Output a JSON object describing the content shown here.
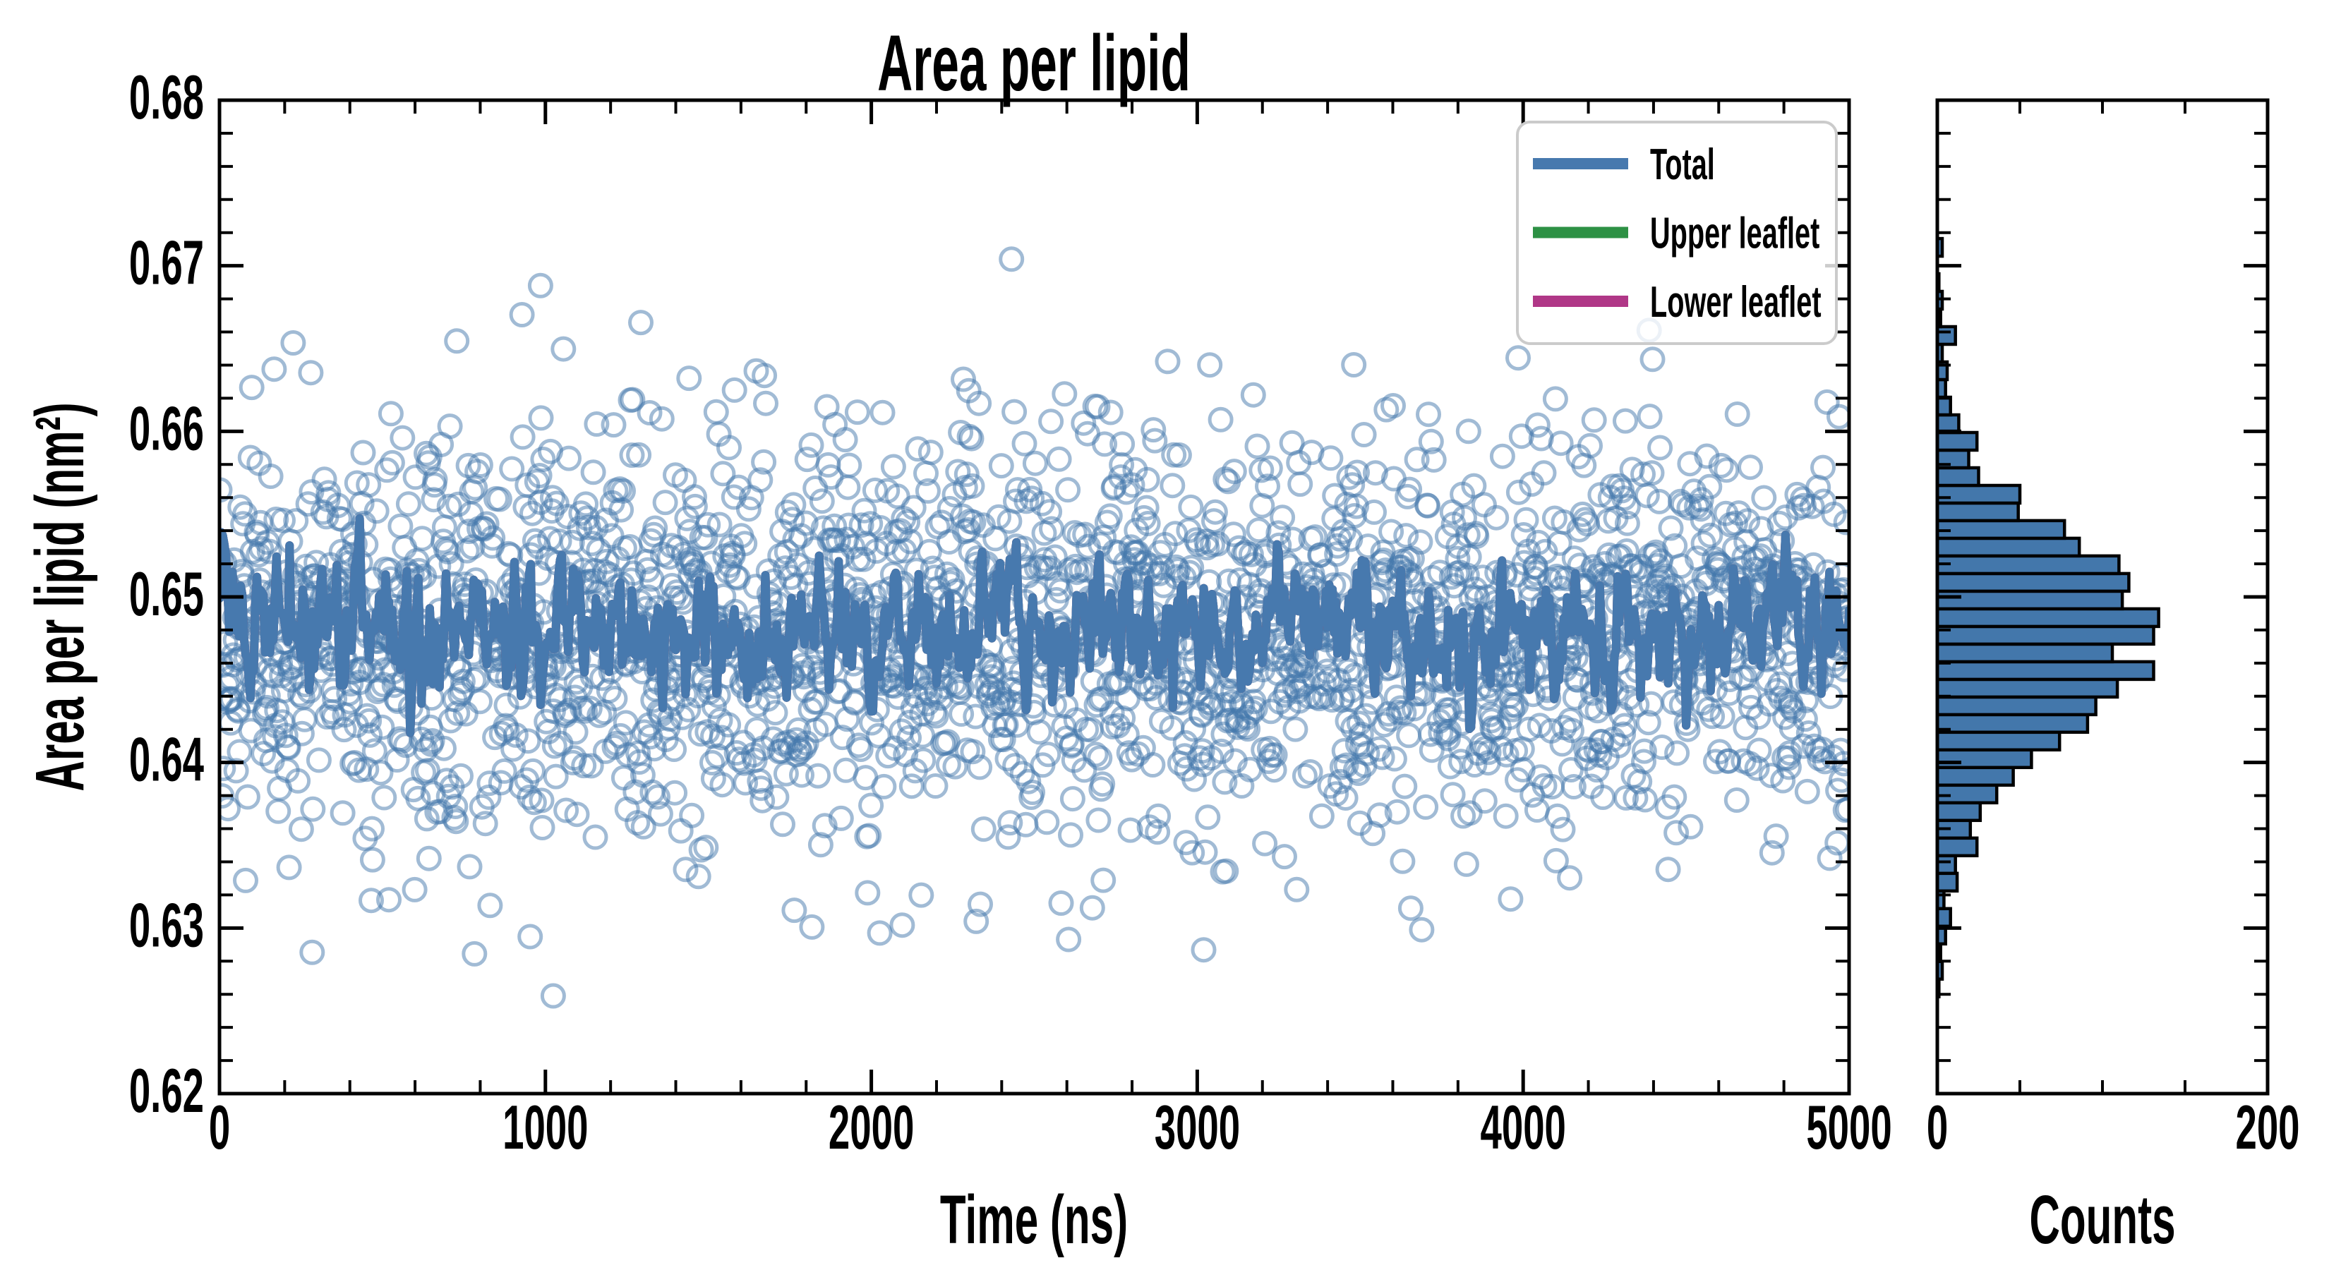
{
  "figure": {
    "title": "Area per lipid",
    "background": "#ffffff",
    "main_plot": {
      "xlabel": "Time (ns)",
      "ylabel": "Area per lipid (nm²)",
      "xlim": [
        0,
        5000
      ],
      "ylim": [
        0.62,
        0.68
      ],
      "x_tick_labels": [
        "0",
        "1000",
        "2000",
        "3000",
        "4000",
        "5000"
      ],
      "x_tick_values": [
        0,
        1000,
        2000,
        3000,
        4000,
        5000
      ],
      "x_minor_step": 200,
      "y_tick_labels": [
        "0.62",
        "0.63",
        "0.64",
        "0.65",
        "0.66",
        "0.67",
        "0.68"
      ],
      "y_tick_values": [
        0.62,
        0.63,
        0.64,
        0.65,
        0.66,
        0.67,
        0.68
      ],
      "y_minor_step": 0.002
    },
    "hist_plot": {
      "xlabel": "Counts",
      "xlim": [
        0,
        200
      ],
      "x_tick_labels": [
        "0",
        "200"
      ],
      "x_tick_values": [
        0,
        200
      ],
      "x_minor_ticks": [
        50,
        100,
        150
      ]
    },
    "legend": {
      "entries": [
        {
          "label": "Total",
          "color": "#4779AE"
        },
        {
          "label": "Upper leaflet",
          "color": "#2D9144"
        },
        {
          "label": "Lower leaflet",
          "color": "#B03787"
        }
      ],
      "border_color": "#CBCBCB",
      "background": "rgba(255,255,255,0.8)"
    },
    "colors": {
      "total_line": "#4779AE",
      "upper_leaflet_line": "#2D9144",
      "lower_leaflet_line": "#B03787",
      "histogram_fill": "#4377AB",
      "histogram_edge": "#000000",
      "scatter_edge": "rgba(67,119,171,0.5)",
      "axes": "#000000"
    }
  },
  "chart_data": [
    {
      "panel": "main",
      "type": "scatter",
      "title": "Area per lipid",
      "xlabel": "Time (ns)",
      "ylabel": "Area per lipid (nm²)",
      "xlim": [
        0,
        5000
      ],
      "ylim": [
        0.62,
        0.68
      ],
      "grid": false,
      "legend_position": "upper right",
      "series": [
        {
          "name": "Total",
          "type": "line",
          "color": "#4779AE",
          "summary": {
            "mean": 0.648,
            "sd": 0.0018,
            "points": 1001,
            "x_step_ns": 5
          }
        },
        {
          "name": "Upper leaflet",
          "type": "line",
          "color": "#2D9144",
          "note": "coincides with Total average and is hidden beneath it"
        },
        {
          "name": "Lower leaflet",
          "type": "line",
          "color": "#B03787",
          "note": "coincides with Total average and is hidden beneath it"
        },
        {
          "name": "per-frame samples",
          "type": "scatter",
          "marker": "open-circle",
          "color": "rgba(67,119,171,0.5)",
          "summary": {
            "points": 2400,
            "mean": 0.6478,
            "sd": 0.0062,
            "x_range_ns": [
              0,
              5000
            ]
          }
        }
      ],
      "notable_outliers": [
        [
          2430,
          0.6704
        ],
        [
          985,
          0.6688
        ],
        [
          1024,
          0.6259
        ],
        [
          3655,
          0.6312
        ]
      ],
      "gen": {
        "scatter_seed": 20,
        "line_seed": 11,
        "line_phi": 0.5,
        "line_innovation_sd": 0.0016
      }
    },
    {
      "panel": "right",
      "type": "bar",
      "orientation": "horizontal",
      "xlabel": "Counts",
      "xlim": [
        0,
        200
      ],
      "ylim": [
        0.62,
        0.68
      ],
      "bin_start": 0.62585,
      "bin_width": 0.001065,
      "counts": [
        1,
        3,
        2,
        5,
        8,
        4,
        12,
        11,
        24,
        20,
        26,
        36,
        46,
        57,
        74,
        91,
        96,
        109,
        131,
        106,
        131,
        134,
        112,
        116,
        110,
        86,
        77,
        49,
        50,
        25,
        19,
        24,
        13,
        8,
        5,
        6,
        3,
        11,
        2,
        3,
        1,
        0,
        3
      ]
    }
  ]
}
